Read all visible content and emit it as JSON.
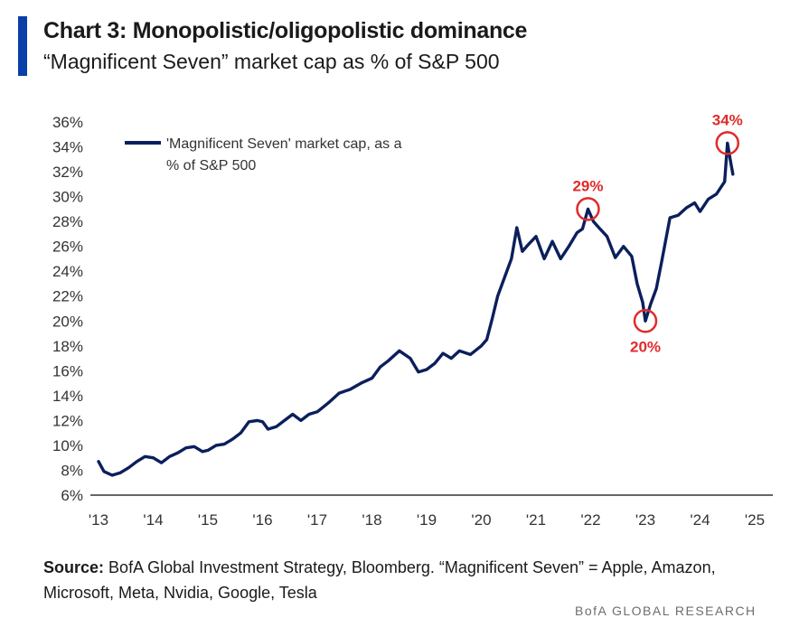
{
  "header": {
    "title": "Chart 3: Monopolistic/oligopolistic dominance",
    "subtitle": "“Magnificent Seven” market cap as % of S&P 500"
  },
  "footer": {
    "source_label": "Source:",
    "source_text": "BofA Global Investment Strategy, Bloomberg. “Magnificent Seven” = Apple, Amazon, Microsoft, Meta, Nvidia, Google, Tesla",
    "brand": "BofA GLOBAL RESEARCH"
  },
  "colors": {
    "accent": "#0a3ea8",
    "series": "#0b1f5c",
    "annotation": "#e02b2b",
    "axis": "#333333"
  },
  "chart_data": {
    "type": "line",
    "title": "Chart 3: Monopolistic/oligopolistic dominance",
    "subtitle": "“Magnificent Seven” market cap as % of S&P 500",
    "xlabel": "",
    "ylabel": "",
    "x_ticks": [
      "'13",
      "'14",
      "'15",
      "'16",
      "'17",
      "'18",
      "'19",
      "'20",
      "'21",
      "'22",
      "'23",
      "'24",
      "'25"
    ],
    "y_ticks": [
      "6%",
      "8%",
      "10%",
      "12%",
      "14%",
      "16%",
      "18%",
      "20%",
      "22%",
      "24%",
      "26%",
      "28%",
      "30%",
      "32%",
      "34%",
      "36%"
    ],
    "xlim": [
      2013,
      2025.2
    ],
    "ylim": [
      6,
      36
    ],
    "grid": false,
    "legend": "top-left",
    "series": [
      {
        "name": "'Magnificent Seven' market cap, as a % of S&P 500",
        "x": [
          2013.0,
          2013.1,
          2013.25,
          2013.4,
          2013.55,
          2013.7,
          2013.85,
          2014.0,
          2014.15,
          2014.3,
          2014.45,
          2014.6,
          2014.75,
          2014.9,
          2015.0,
          2015.15,
          2015.3,
          2015.45,
          2015.6,
          2015.75,
          2015.9,
          2016.0,
          2016.1,
          2016.25,
          2016.4,
          2016.55,
          2016.7,
          2016.85,
          2017.0,
          2017.2,
          2017.4,
          2017.6,
          2017.8,
          2018.0,
          2018.15,
          2018.3,
          2018.5,
          2018.7,
          2018.85,
          2019.0,
          2019.15,
          2019.3,
          2019.45,
          2019.6,
          2019.8,
          2020.0,
          2020.1,
          2020.2,
          2020.3,
          2020.45,
          2020.55,
          2020.65,
          2020.75,
          2020.85,
          2021.0,
          2021.15,
          2021.3,
          2021.45,
          2021.6,
          2021.75,
          2021.85,
          2021.95,
          2022.05,
          2022.15,
          2022.3,
          2022.45,
          2022.6,
          2022.75,
          2022.85,
          2022.95,
          2023.0,
          2023.1,
          2023.2,
          2023.3,
          2023.45,
          2023.6,
          2023.75,
          2023.9,
          2024.0,
          2024.15,
          2024.3,
          2024.45,
          2024.5,
          2024.55,
          2024.6
        ],
        "values": [
          8.7,
          7.9,
          7.6,
          7.8,
          8.2,
          8.7,
          9.1,
          9.0,
          8.6,
          9.1,
          9.4,
          9.8,
          9.9,
          9.5,
          9.6,
          10.0,
          10.1,
          10.5,
          11.0,
          11.9,
          12.0,
          11.9,
          11.3,
          11.5,
          12.0,
          12.5,
          12.0,
          12.5,
          12.7,
          13.4,
          14.2,
          14.5,
          15.0,
          15.4,
          16.3,
          16.8,
          17.6,
          17.0,
          15.9,
          16.1,
          16.6,
          17.4,
          17.0,
          17.6,
          17.3,
          18.0,
          18.5,
          20.2,
          22.0,
          23.8,
          25.0,
          27.5,
          25.6,
          26.1,
          26.8,
          25.0,
          26.4,
          25.0,
          26.0,
          27.1,
          27.4,
          29.0,
          28.0,
          27.5,
          26.8,
          25.1,
          26.0,
          25.2,
          23.0,
          21.5,
          20.0,
          21.4,
          22.6,
          24.8,
          28.3,
          28.5,
          29.1,
          29.5,
          28.8,
          29.8,
          30.2,
          31.2,
          34.3,
          33.0,
          31.8
        ]
      }
    ],
    "annotations": [
      {
        "label": "29%",
        "x": 2021.95,
        "y": 29.0
      },
      {
        "label": "20%",
        "x": 2023.0,
        "y": 20.0
      },
      {
        "label": "34%",
        "x": 2024.5,
        "y": 34.3
      }
    ]
  }
}
